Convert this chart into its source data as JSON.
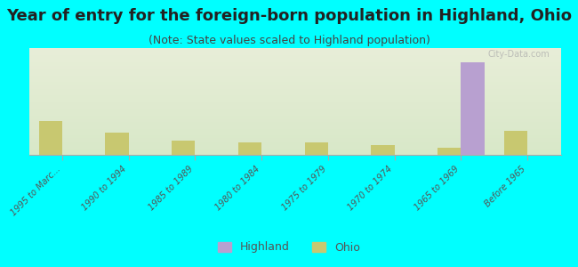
{
  "title": "Year of entry for the foreign-born population in Highland, Ohio",
  "subtitle": "(Note: State values scaled to Highland population)",
  "categories": [
    "1995 to Marc...",
    "1990 to 1994",
    "1985 to 1989",
    "1980 to 1984",
    "1975 to 1979",
    "1970 to 1974",
    "1965 to 1969",
    "Before 1965"
  ],
  "highland_values": [
    0,
    0,
    0,
    0,
    0,
    0,
    19,
    0
  ],
  "ohio_values": [
    7,
    4.5,
    3,
    2.5,
    2.5,
    2,
    1.5,
    5
  ],
  "highland_color": "#b8a0d0",
  "ohio_color": "#c8c870",
  "background_color": "#00ffff",
  "plot_bg_start": "#e8eed8",
  "plot_bg_end": "#f5f5e8",
  "ylim": [
    0,
    22
  ],
  "bar_width": 0.35,
  "legend_highland": "Highland",
  "legend_ohio": "Ohio",
  "title_fontsize": 13,
  "subtitle_fontsize": 9,
  "watermark": "City-Data.com"
}
